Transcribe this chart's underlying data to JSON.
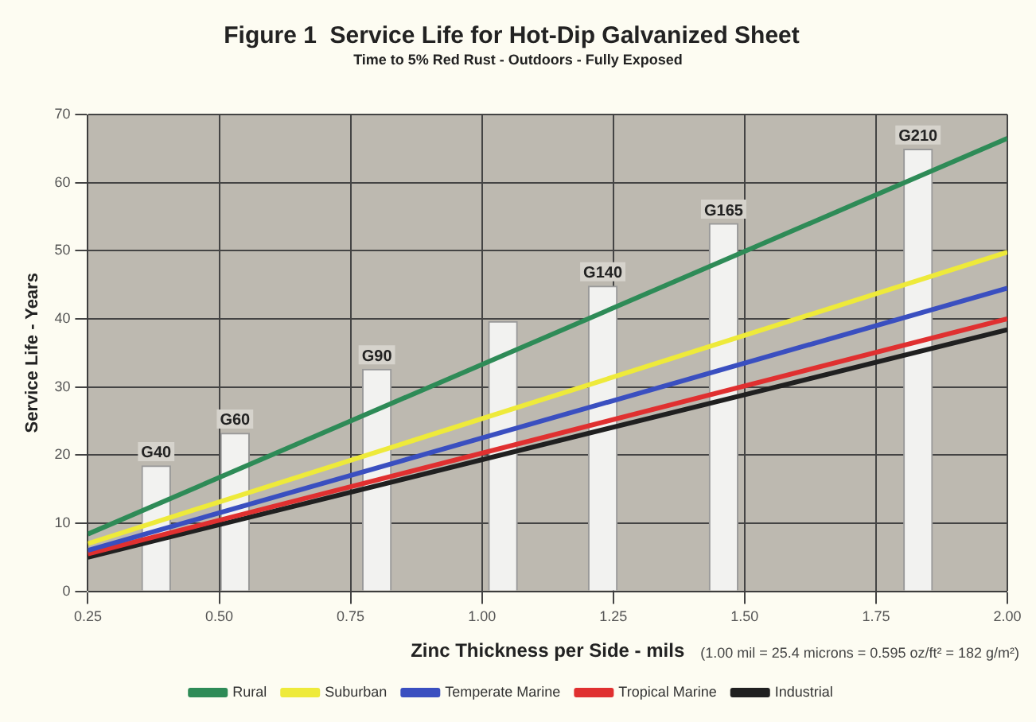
{
  "chart_data": {
    "type": "line",
    "title": "Figure 1  Service Life for Hot-Dip Galvanized Sheet",
    "subtitle": "Time to 5% Red Rust - Outdoors - Fully Exposed",
    "xlabel": "Zinc Thickness per Side - mils",
    "ylabel": "Service Life - Years",
    "xlim": [
      0.25,
      2.0
    ],
    "xticks": [
      {
        "value": 0.25,
        "label": "0.25"
      },
      {
        "value": 0.5,
        "label": "0.50"
      },
      {
        "value": 0.75,
        "label": "0.75"
      },
      {
        "value": 1.0,
        "label": "1.00"
      },
      {
        "value": 1.25,
        "label": "1.25"
      },
      {
        "value": 1.5,
        "label": "1.50"
      },
      {
        "value": 1.75,
        "label": "1.75"
      },
      {
        "value": 2.0,
        "label": "2.00"
      }
    ],
    "ylim": [
      0,
      70
    ],
    "yticks": [
      0,
      10,
      20,
      30,
      40,
      50,
      60,
      70
    ],
    "grid": true,
    "legend": "bottom",
    "series": [
      {
        "type": "bar",
        "color": "#f2f2f0",
        "x": [
          0.38,
          0.53,
          0.8,
          1.04,
          1.23,
          1.46,
          1.83
        ],
        "values": [
          18.4,
          23.2,
          32.6,
          39.6,
          44.8,
          54,
          64.9
        ]
      },
      {
        "name": "Rural",
        "color": "#2e8b57",
        "x": [
          0.25,
          2.0
        ],
        "values": [
          8.4,
          66.5
        ]
      },
      {
        "name": "Suburban",
        "color": "#eeea3a",
        "x": [
          0.25,
          2.0
        ],
        "values": [
          7,
          49.8
        ]
      },
      {
        "name": "Temperate Marine",
        "color": "#3a4fc0",
        "x": [
          0.25,
          2.0
        ],
        "values": [
          6,
          44.5
        ]
      },
      {
        "name": "Tropical Marine",
        "color": "#e03030",
        "x": [
          0.25,
          2.0
        ],
        "values": [
          5.5,
          40
        ]
      },
      {
        "name": "Industrial",
        "color": "#202020",
        "x": [
          0.25,
          2.0
        ],
        "values": [
          5,
          38.4
        ]
      }
    ],
    "annotations": [
      {
        "text": "G40",
        "x": 0.38,
        "y": 18.4
      },
      {
        "text": "G60",
        "x": 0.53,
        "y": 23.2
      },
      {
        "text": "G90",
        "x": 0.8,
        "y": 32.6
      },
      {
        "text": "G140",
        "x": 1.23,
        "y": 44.8
      },
      {
        "text": "G165",
        "x": 1.46,
        "y": 54
      },
      {
        "text": "G210",
        "x": 1.83,
        "y": 64.9
      },
      "(1.00 mil = 25.4 microns = 0.595 oz/ft² = 182 g/m²)"
    ]
  }
}
